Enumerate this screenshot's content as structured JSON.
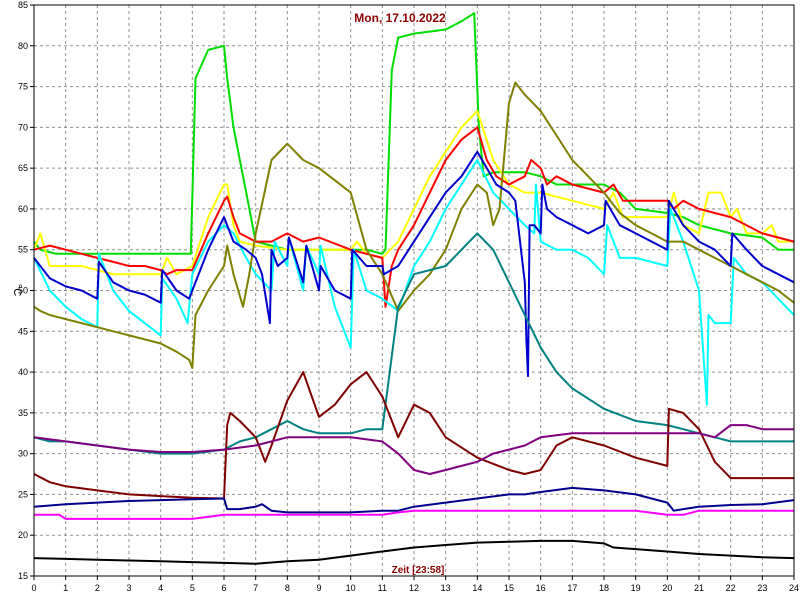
{
  "chart_data": {
    "type": "line",
    "title": "Mon, 17.10.2022",
    "xlabel": "Zeit [23:58]",
    "ylabel": "°C",
    "xlim": [
      0,
      24
    ],
    "ylim": [
      15,
      85
    ],
    "xticks": [
      "0",
      "1",
      "2",
      "3",
      "4",
      "5",
      "6",
      "7",
      "8",
      "9",
      "10",
      "11",
      "12",
      "13",
      "14",
      "15",
      "16",
      "17",
      "18",
      "19",
      "20",
      "21",
      "22",
      "23",
      "24"
    ],
    "yticks": [
      "15",
      "20",
      "25",
      "30",
      "35",
      "40",
      "45",
      "50",
      "55",
      "60",
      "65",
      "70",
      "75",
      "80",
      "85"
    ],
    "grid": true,
    "series": [
      {
        "color": "#00dd00",
        "x": [
          0,
          0.2,
          0.7,
          1.5,
          2,
          3,
          4,
          4.8,
          4.95,
          5.1,
          5.5,
          6.0,
          6.1,
          6.3,
          6.7,
          7,
          8,
          9,
          10,
          10.5,
          11,
          11.1,
          11.3,
          11.5,
          12,
          13,
          13.5,
          13.9,
          14.05,
          14.2,
          14.5,
          15,
          15.5,
          16,
          16.5,
          17,
          17.5,
          18,
          18.5,
          19,
          20,
          20.5,
          21,
          22,
          23,
          23.5,
          24
        ],
        "y": [
          56,
          55,
          54.5,
          54.5,
          54.5,
          54.5,
          54.5,
          54.5,
          54.5,
          76,
          79.5,
          80,
          76,
          70,
          62,
          56,
          55,
          55,
          55,
          55,
          54.5,
          55,
          77,
          81,
          81.5,
          82,
          83,
          84,
          70,
          64,
          64.5,
          64.5,
          64.5,
          64,
          63,
          63,
          63,
          63,
          62,
          60,
          59.5,
          59,
          58,
          57,
          56.5,
          55,
          55
        ]
      },
      {
        "color": "#ffff00",
        "x": [
          0,
          0.2,
          0.5,
          1,
          1.5,
          2,
          2.5,
          3,
          3.5,
          4,
          4.2,
          4.5,
          5,
          5.5,
          6,
          6.1,
          6.3,
          6.5,
          7,
          8,
          9,
          10,
          10.2,
          10.5,
          11,
          11.5,
          12,
          12.5,
          13,
          13.5,
          14,
          14.5,
          15,
          15.5,
          16,
          17,
          18,
          18.3,
          18.6,
          19,
          20,
          20.2,
          20.5,
          21,
          21.3,
          21.7,
          22,
          22.2,
          22.5,
          23,
          23.3,
          23.5,
          24
        ],
        "y": [
          55,
          57,
          53,
          53,
          53,
          52.5,
          52,
          52,
          52,
          52,
          54,
          52,
          53,
          59,
          63,
          63,
          58,
          56,
          55.5,
          55,
          55,
          55,
          56,
          54.5,
          54,
          56,
          60,
          64,
          67,
          70,
          72,
          66,
          63,
          62,
          62,
          61,
          60,
          62,
          59,
          59,
          59,
          62,
          58,
          57,
          62,
          62,
          59,
          60,
          57,
          57,
          58,
          56,
          56
        ]
      },
      {
        "color": "#ff0000",
        "x": [
          0,
          0.5,
          1,
          1.5,
          2,
          2.5,
          3,
          3.5,
          4,
          4.2,
          4.5,
          5,
          5.5,
          6,
          6.1,
          6.3,
          6.5,
          7,
          7.5,
          8,
          8.5,
          9,
          10,
          10.5,
          11,
          11.1,
          11.3,
          11.5,
          12,
          12.5,
          13,
          13.5,
          14,
          14.3,
          14.6,
          15,
          15.5,
          15.7,
          16,
          16.2,
          16.5,
          17,
          18,
          18.3,
          18.6,
          19,
          20,
          20.2,
          20.5,
          21,
          22,
          23,
          24
        ],
        "y": [
          55,
          55.5,
          55,
          54.5,
          54,
          53.5,
          53,
          53,
          52.5,
          52,
          52.5,
          52.5,
          57,
          61,
          61.5,
          59,
          57,
          56,
          56,
          57,
          56,
          56.5,
          55,
          54.5,
          54,
          48,
          53,
          55,
          58,
          62,
          66,
          68.5,
          70,
          66,
          64,
          63,
          64,
          66,
          65,
          63,
          64,
          63,
          62,
          63,
          61,
          61,
          61,
          60,
          61,
          60,
          59,
          57,
          56
        ]
      },
      {
        "color": "#00ffff",
        "x": [
          0,
          0.5,
          1,
          1.5,
          2,
          2.05,
          2.5,
          3,
          3.5,
          4,
          4.05,
          4.5,
          4.85,
          5,
          5.5,
          6,
          6.3,
          6.7,
          7,
          7.5,
          7.6,
          8,
          8.05,
          8.5,
          8.6,
          9,
          9.05,
          9.5,
          10,
          10.1,
          10.5,
          11,
          11.5,
          12,
          12.5,
          13,
          13.5,
          14,
          14.5,
          15,
          15.5,
          15.8,
          15.85,
          16,
          16.5,
          17,
          17.5,
          18,
          18.1,
          18.5,
          19,
          20,
          20.1,
          20.5,
          21,
          21.25,
          21.3,
          21.5,
          22,
          22.1,
          22.5,
          23,
          23.5,
          24
        ],
        "y": [
          54,
          50,
          48,
          46.5,
          45.5,
          54.5,
          50,
          47.5,
          46,
          44.5,
          51.5,
          49,
          46,
          52,
          56,
          58,
          57,
          54,
          52,
          50,
          56,
          53,
          56.5,
          50,
          55.5,
          52,
          55.5,
          48,
          43,
          55,
          50,
          49,
          47.5,
          53,
          56,
          60,
          63,
          66,
          62,
          60,
          58,
          57,
          63,
          56,
          55,
          55,
          54,
          52,
          58,
          54,
          54,
          53,
          60,
          56,
          50,
          36,
          47,
          46,
          46,
          54,
          52,
          51,
          49,
          47
        ]
      },
      {
        "color": "#808000",
        "x": [
          0,
          0.2,
          0.5,
          1,
          1.5,
          2,
          2.5,
          3,
          3.5,
          4,
          4.5,
          4.9,
          5.0,
          5.1,
          5.5,
          6,
          6.1,
          6.3,
          6.6,
          6.8,
          7,
          7.5,
          8,
          8.5,
          9,
          10,
          10.5,
          11,
          11.5,
          12,
          12.5,
          13,
          13.5,
          14,
          14.3,
          14.5,
          14.7,
          15,
          15.2,
          15.5,
          16,
          16.5,
          17,
          17.5,
          18,
          18.5,
          19,
          19.5,
          20,
          20.5,
          21,
          21.5,
          22,
          22.5,
          23,
          23.5,
          24
        ],
        "y": [
          48,
          47.5,
          47,
          46.5,
          46,
          45.5,
          45,
          44.5,
          44,
          43.5,
          42.5,
          41.5,
          40.5,
          47,
          50,
          53,
          55.5,
          52,
          48,
          52,
          57,
          66,
          68,
          66,
          65,
          62,
          55,
          52,
          47.5,
          50,
          52,
          55,
          60,
          63,
          62,
          58,
          60,
          73,
          75.5,
          74,
          72,
          69,
          66,
          64,
          62,
          59.5,
          58,
          57,
          56,
          56,
          55,
          54,
          53,
          52,
          51,
          50,
          48.5
        ]
      },
      {
        "color": "#0000cc",
        "x": [
          0,
          0.5,
          1,
          1.5,
          2,
          2.05,
          2.5,
          3,
          3.5,
          4,
          4.05,
          4.5,
          4.9,
          5,
          5.5,
          6,
          6.3,
          6.7,
          7,
          7.2,
          7.45,
          7.5,
          7.7,
          8,
          8.05,
          8.5,
          8.6,
          9,
          9.05,
          9.5,
          10,
          10.05,
          10.5,
          11,
          11.05,
          11.5,
          12,
          12.5,
          13,
          13.5,
          14,
          14.3,
          14.6,
          15,
          15.2,
          15.5,
          15.55,
          15.6,
          15.65,
          15.8,
          16,
          16.05,
          16.2,
          16.5,
          17,
          17.5,
          18,
          18.05,
          18.5,
          19,
          20,
          20.05,
          20.5,
          21,
          21.5,
          22,
          22.05,
          22.5,
          23,
          23.5,
          24
        ],
        "y": [
          54,
          51.5,
          50.5,
          50,
          49,
          53.5,
          51,
          50,
          49.5,
          48.5,
          52.5,
          50,
          49,
          50,
          55,
          59,
          56,
          55,
          54,
          52,
          46,
          55,
          53,
          54,
          56.5,
          51,
          55.5,
          50,
          53,
          50,
          49,
          55,
          53,
          53,
          52,
          53,
          56,
          59,
          62,
          64,
          67,
          65,
          63,
          62,
          61,
          51,
          44,
          39.5,
          58,
          58,
          57,
          63,
          60,
          59,
          58,
          57,
          58,
          61,
          58,
          57,
          55,
          61,
          58,
          56,
          55,
          53,
          57,
          55,
          53,
          52,
          51
        ]
      },
      {
        "color": "#008080",
        "x": [
          0,
          0.5,
          1,
          2,
          3,
          4,
          5,
          6,
          6.5,
          7,
          7.5,
          8,
          8.5,
          9,
          10,
          10.5,
          11,
          11.5,
          12,
          13,
          13.5,
          14,
          14.5,
          15,
          15.5,
          16,
          16.5,
          17,
          18,
          19,
          20,
          20.5,
          21,
          21.5,
          22,
          22.5,
          23,
          23.5,
          24
        ],
        "y": [
          32,
          31.5,
          31.5,
          31,
          30.5,
          30,
          30,
          30.5,
          31.5,
          32,
          33,
          34,
          33,
          32.5,
          32.5,
          33,
          33,
          48,
          52,
          53,
          55,
          57,
          55,
          51,
          47,
          43,
          40,
          38,
          35.5,
          34,
          33.5,
          33,
          32.5,
          32,
          31.5,
          31.5,
          31.5,
          31.5,
          31.5
        ]
      },
      {
        "color": "#800000",
        "x": [
          0,
          0.5,
          1,
          2,
          3,
          4,
          5,
          6,
          6.1,
          6.2,
          6.5,
          7,
          7.3,
          7.5,
          8,
          8.5,
          9,
          9.5,
          10,
          10.5,
          11,
          11.5,
          12,
          12.5,
          13,
          14,
          15,
          15.5,
          16,
          16.5,
          17,
          18,
          19,
          20,
          20.05,
          20.5,
          21,
          21.5,
          22,
          23,
          24
        ],
        "y": [
          27.5,
          26.5,
          26,
          25.5,
          25,
          24.8,
          24.6,
          24.5,
          33.5,
          35,
          34,
          32,
          29,
          31,
          36.5,
          40,
          34.5,
          36,
          38.5,
          40,
          37,
          32,
          36,
          35,
          32,
          29.5,
          28,
          27.5,
          28,
          31,
          32,
          31,
          29.5,
          28.5,
          35.5,
          35,
          33,
          29,
          27,
          27,
          27
        ]
      },
      {
        "color": "#800080",
        "x": [
          0,
          1,
          2,
          3,
          4,
          5,
          6,
          7,
          8,
          9,
          10,
          11,
          11.5,
          12,
          12.5,
          13,
          13.5,
          14,
          14.5,
          15,
          15.5,
          16,
          17,
          18,
          19,
          20,
          21,
          21.5,
          22,
          22.5,
          23,
          24
        ],
        "y": [
          32,
          31.5,
          31,
          30.5,
          30.2,
          30.2,
          30.5,
          31,
          32,
          32,
          32,
          31.5,
          30,
          28,
          27.5,
          28,
          28.5,
          29,
          30,
          30.5,
          31,
          32,
          32.5,
          32.5,
          32.5,
          32.5,
          32.5,
          32,
          33.5,
          33.5,
          33,
          33
        ]
      },
      {
        "color": "#00008b",
        "x": [
          0,
          1,
          2,
          3,
          4,
          5,
          6,
          6.1,
          6.5,
          7,
          7.2,
          7.5,
          8,
          9,
          10,
          11,
          11.5,
          12,
          13,
          14,
          15,
          15.5,
          16,
          17,
          18,
          19,
          20,
          20.2,
          20.5,
          21,
          22,
          23,
          24
        ],
        "y": [
          23.5,
          23.8,
          24,
          24.2,
          24.3,
          24.4,
          24.5,
          23.2,
          23.2,
          23.5,
          23.8,
          23,
          22.8,
          22.8,
          22.8,
          23,
          23,
          23.5,
          24,
          24.5,
          25,
          25,
          25.3,
          25.8,
          25.5,
          25,
          24,
          23,
          23.2,
          23.5,
          23.7,
          23.8,
          24.3
        ]
      },
      {
        "color": "#ff00ff",
        "x": [
          0,
          0.5,
          0.8,
          1,
          2,
          3,
          4,
          5,
          6,
          6.5,
          7,
          8,
          9,
          10,
          11,
          11.5,
          12,
          13,
          14,
          15,
          16,
          17,
          18,
          19,
          20,
          20.5,
          21,
          22,
          23,
          24
        ],
        "y": [
          22.5,
          22.5,
          22.5,
          22,
          22,
          22,
          22,
          22,
          22.5,
          22.5,
          22.5,
          22.5,
          22.5,
          22.5,
          22.5,
          22.8,
          23,
          23,
          23,
          23,
          23,
          23,
          23,
          23,
          22.5,
          22.5,
          23,
          23,
          23,
          23
        ]
      },
      {
        "color": "#000000",
        "x": [
          0,
          1,
          2,
          3,
          4,
          5,
          6,
          7,
          8,
          9,
          10,
          11,
          12,
          13,
          14,
          15,
          16,
          17,
          18,
          18.3,
          19,
          20,
          21,
          22,
          23,
          24
        ],
        "y": [
          17.2,
          17.1,
          17,
          16.9,
          16.8,
          16.7,
          16.6,
          16.5,
          16.8,
          17,
          17.5,
          18,
          18.5,
          18.8,
          19.1,
          19.2,
          19.3,
          19.3,
          19,
          18.5,
          18.3,
          18,
          17.7,
          17.5,
          17.3,
          17.2
        ]
      }
    ]
  }
}
